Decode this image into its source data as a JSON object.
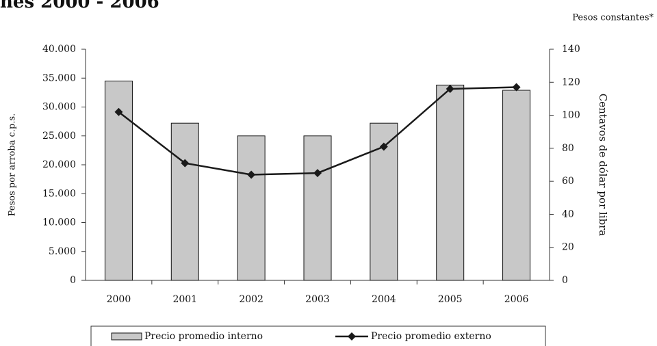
{
  "chart_data": {
    "type": "bar-line",
    "title": "nes 2000 - 2006",
    "subtitle": "Pesos constantes*",
    "ylabel": "Pesos por arroba c.p.s.",
    "y2label": "Centavos de dólar por libra",
    "categories": [
      "2000",
      "2001",
      "2002",
      "2003",
      "2004",
      "2005",
      "2006"
    ],
    "series": [
      {
        "name": "Precio promedio interno",
        "type": "bar",
        "color": "#c8c8c8",
        "values": [
          34500,
          27200,
          25000,
          25000,
          27200,
          33800,
          32900
        ]
      },
      {
        "name": "Precio promedio externo",
        "type": "line",
        "axis": "y2",
        "color": "#1a1a1a",
        "values": [
          102,
          71,
          64,
          65,
          81,
          116,
          117
        ]
      }
    ],
    "ylim": [
      0,
      40000
    ],
    "yticks": [
      0,
      {
        "value": 5000,
        "label": "5.000"
      },
      {
        "value": 10000,
        "label": "10.000"
      },
      {
        "value": 15000,
        "label": "15.000"
      },
      {
        "value": 20000,
        "label": "20.000"
      },
      {
        "value": 25000,
        "label": "25.000"
      },
      {
        "value": 30000,
        "label": "30.000"
      },
      {
        "value": 35000,
        "label": "35.000"
      },
      {
        "value": 40000,
        "label": "40.000"
      }
    ],
    "y2lim": [
      0,
      140
    ],
    "y2ticks": [
      0,
      20,
      40,
      60,
      80,
      100,
      120,
      140
    ],
    "legend": "bottom"
  }
}
